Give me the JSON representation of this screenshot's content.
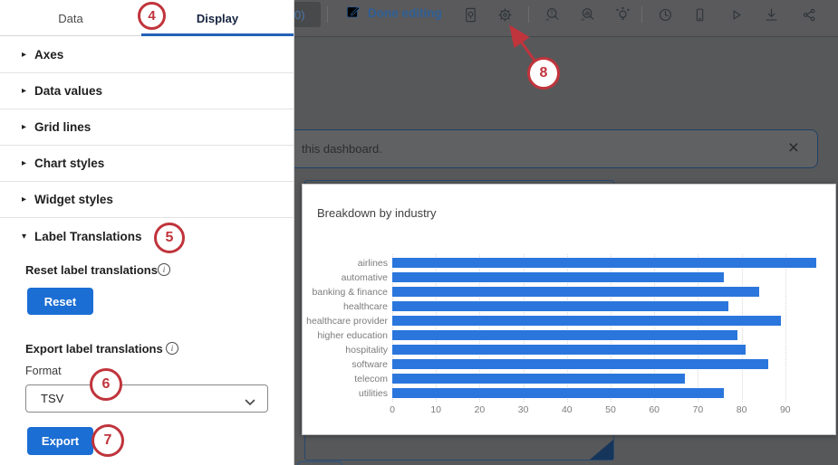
{
  "toolbar": {
    "partial_button_label": "0)",
    "done_editing_label": "Done editing",
    "icons": [
      "edit-pencil-icon",
      "page-insights-icon",
      "settings-gear-icon",
      "text-iq-search-icon",
      "stats-iq-search-icon",
      "insights-bulb-icon",
      "history-clock-icon",
      "mobile-preview-icon",
      "play-preview-icon",
      "download-export-icon",
      "share-icon"
    ]
  },
  "panel": {
    "tabs": [
      {
        "label": "Data",
        "active": false
      },
      {
        "label": "Display",
        "active": true
      }
    ],
    "sections": [
      {
        "label": "Axes",
        "expanded": false
      },
      {
        "label": "Data values",
        "expanded": false
      },
      {
        "label": "Grid lines",
        "expanded": false
      },
      {
        "label": "Chart styles",
        "expanded": false
      },
      {
        "label": "Widget styles",
        "expanded": false
      },
      {
        "label": "Label Translations",
        "expanded": true
      }
    ],
    "label_translations": {
      "reset_heading": "Reset label translations",
      "reset_button_label": "Reset",
      "export_heading": "Export label translations",
      "format_label": "Format",
      "format_value": "TSV",
      "export_button_label": "Export"
    }
  },
  "banner": {
    "visible_text": "this dashboard.",
    "close_icon": "×"
  },
  "annotations": {
    "step4": "4",
    "step5": "5",
    "step6": "6",
    "step7": "7",
    "step8": "8"
  },
  "colors": {
    "accent_blue": "#1b6ed3",
    "bar_blue": "#2b76dd",
    "annotation_red": "#c0343c",
    "link_blue": "#2e5f97"
  },
  "chart_data": {
    "type": "bar",
    "orientation": "horizontal",
    "title": "Breakdown by industry",
    "categories": [
      "airlines",
      "automative",
      "banking & finance",
      "healthcare",
      "healthcare provider",
      "higher education",
      "hospitality",
      "software",
      "telecom",
      "utilities"
    ],
    "values": [
      97,
      76,
      84,
      77,
      89,
      79,
      81,
      86,
      67,
      76
    ],
    "xlabel": "",
    "ylabel": "",
    "xlim": [
      0,
      100
    ],
    "xticks": [
      0,
      10,
      20,
      30,
      40,
      50,
      60,
      70,
      80,
      90
    ],
    "grid": "dotted-vertical",
    "legend": "none",
    "bar_color": "#2b76dd"
  }
}
